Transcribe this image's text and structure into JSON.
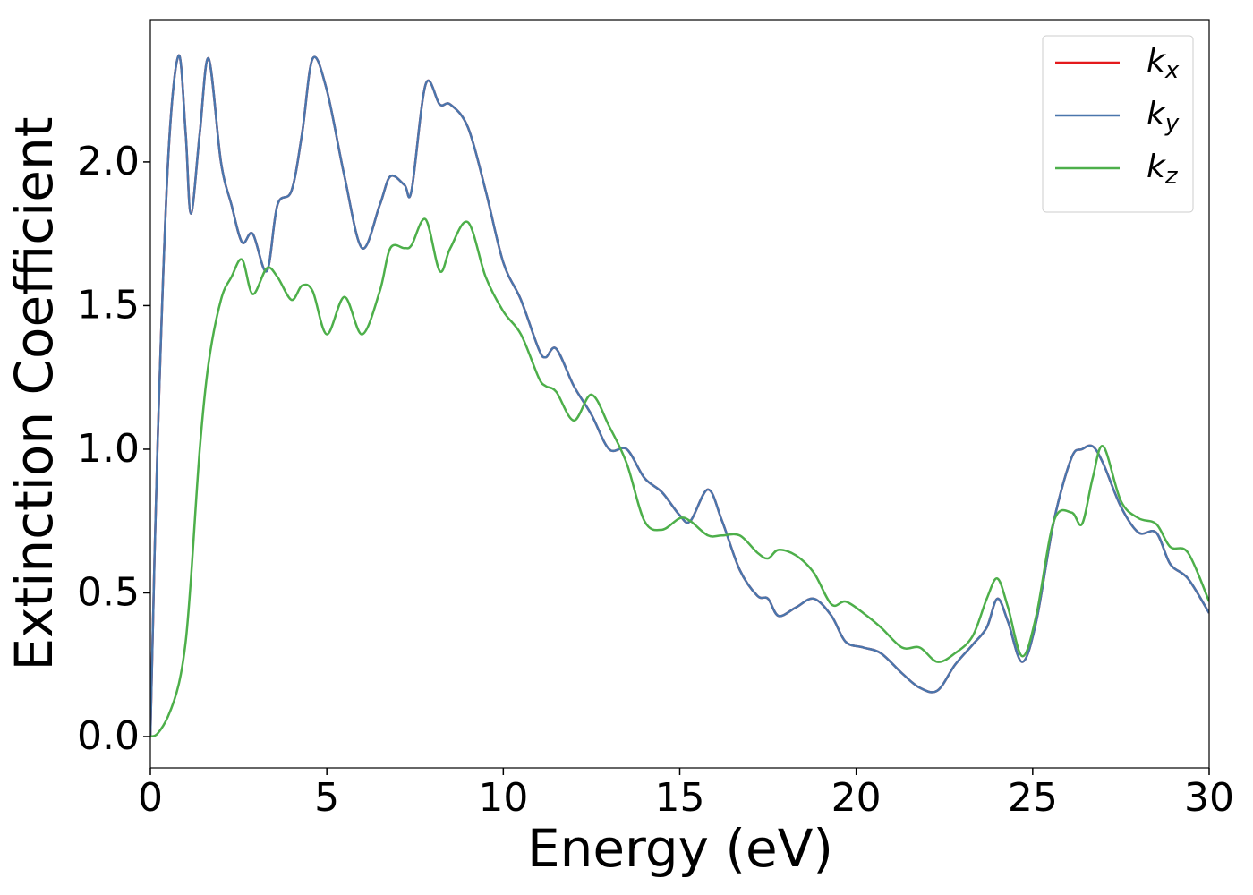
{
  "chart_data": {
    "type": "line",
    "x_label": "Energy (eV)",
    "y_label": "Extinction Coefficient",
    "xlim": [
      0,
      30
    ],
    "ylim": [
      -0.109,
      2.495
    ],
    "xticks": [
      0,
      5,
      10,
      15,
      20,
      25,
      30
    ],
    "yticks": [
      {
        "value": 0,
        "label": "0.0"
      },
      0.5,
      {
        "value": 1,
        "label": "1.0"
      },
      1.5,
      {
        "value": 2,
        "label": "2.0"
      }
    ],
    "legend": "upper right",
    "grid": false,
    "x": [
      0,
      0.2,
      0.5,
      0.8,
      1.0,
      1.15,
      1.4,
      1.65,
      2.0,
      2.3,
      2.6,
      2.9,
      3.3,
      3.6,
      4.0,
      4.3,
      4.6,
      5.0,
      5.5,
      6.0,
      6.5,
      6.8,
      7.2,
      7.4,
      7.8,
      8.2,
      8.5,
      9.0,
      9.5,
      10.0,
      10.5,
      11.0,
      11.2,
      11.5,
      12.0,
      12.5,
      13.0,
      13.5,
      14.0,
      14.5,
      15.0,
      15.3,
      15.8,
      16.2,
      16.7,
      17.2,
      17.5,
      17.8,
      18.3,
      18.8,
      19.3,
      19.7,
      20.2,
      20.7,
      21.3,
      21.8,
      22.3,
      22.8,
      23.3,
      23.7,
      24.0,
      24.3,
      24.7,
      25.1,
      25.6,
      26.1,
      26.4,
      26.7,
      27.0,
      27.5,
      28.0,
      28.5,
      28.9,
      29.4,
      30
    ],
    "series": [
      {
        "name": "kx",
        "color": "#e41a1c",
        "values": [
          0,
          1.0,
          2.0,
          2.37,
          2.1,
          1.82,
          2.1,
          2.36,
          2.0,
          1.85,
          1.72,
          1.75,
          1.62,
          1.85,
          1.9,
          2.1,
          2.36,
          2.25,
          1.95,
          1.7,
          1.85,
          1.95,
          1.92,
          1.9,
          2.27,
          2.2,
          2.2,
          2.12,
          1.9,
          1.65,
          1.52,
          1.35,
          1.32,
          1.35,
          1.22,
          1.12,
          1.0,
          1.0,
          0.9,
          0.85,
          0.77,
          0.75,
          0.86,
          0.75,
          0.58,
          0.49,
          0.48,
          0.42,
          0.45,
          0.48,
          0.42,
          0.33,
          0.31,
          0.29,
          0.22,
          0.17,
          0.16,
          0.25,
          0.32,
          0.38,
          0.48,
          0.4,
          0.26,
          0.4,
          0.75,
          0.97,
          1.0,
          1.01,
          0.95,
          0.8,
          0.71,
          0.71,
          0.6,
          0.55,
          0.43
        ]
      },
      {
        "name": "ky",
        "color": "#4a76ac",
        "values": [
          0,
          1.0,
          2.0,
          2.37,
          2.1,
          1.82,
          2.1,
          2.36,
          2.0,
          1.85,
          1.72,
          1.75,
          1.62,
          1.85,
          1.9,
          2.1,
          2.36,
          2.25,
          1.95,
          1.7,
          1.85,
          1.95,
          1.92,
          1.9,
          2.27,
          2.2,
          2.2,
          2.12,
          1.9,
          1.65,
          1.52,
          1.35,
          1.32,
          1.35,
          1.22,
          1.12,
          1.0,
          1.0,
          0.9,
          0.85,
          0.77,
          0.75,
          0.86,
          0.75,
          0.58,
          0.49,
          0.48,
          0.42,
          0.45,
          0.48,
          0.42,
          0.33,
          0.31,
          0.29,
          0.22,
          0.17,
          0.16,
          0.25,
          0.32,
          0.38,
          0.48,
          0.4,
          0.26,
          0.4,
          0.75,
          0.97,
          1.0,
          1.01,
          0.95,
          0.8,
          0.71,
          0.71,
          0.6,
          0.55,
          0.43
        ]
      },
      {
        "name": "kz",
        "color": "#4daf4a",
        "values": [
          0,
          0.01,
          0.07,
          0.18,
          0.33,
          0.55,
          1.0,
          1.3,
          1.52,
          1.6,
          1.66,
          1.54,
          1.63,
          1.6,
          1.52,
          1.57,
          1.55,
          1.4,
          1.53,
          1.4,
          1.55,
          1.7,
          1.7,
          1.71,
          1.8,
          1.62,
          1.7,
          1.79,
          1.6,
          1.48,
          1.4,
          1.25,
          1.22,
          1.2,
          1.1,
          1.19,
          1.08,
          0.95,
          0.75,
          0.72,
          0.76,
          0.75,
          0.7,
          0.7,
          0.7,
          0.64,
          0.62,
          0.65,
          0.63,
          0.57,
          0.46,
          0.47,
          0.43,
          0.38,
          0.31,
          0.31,
          0.26,
          0.29,
          0.35,
          0.48,
          0.55,
          0.45,
          0.28,
          0.42,
          0.75,
          0.78,
          0.74,
          0.9,
          1.01,
          0.82,
          0.76,
          0.74,
          0.66,
          0.64,
          0.47
        ]
      }
    ]
  }
}
